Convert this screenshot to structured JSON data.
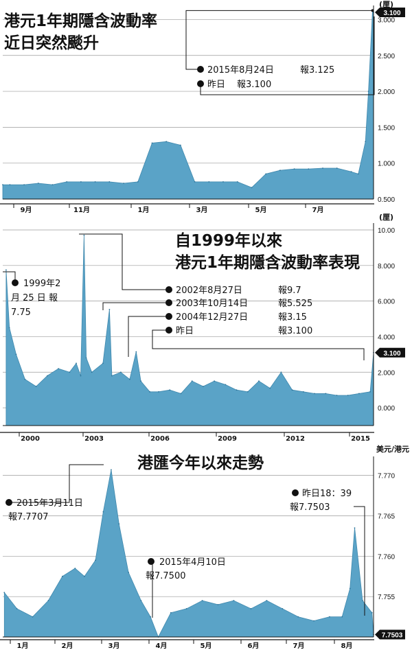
{
  "chart_data": [
    {
      "type": "area",
      "title": [
        "港元1年期隱含波動率",
        "近日突然颷升"
      ],
      "ylabel": "(厘)",
      "ylim": [
        0.5,
        3.1
      ],
      "yticks": [
        "0.500",
        "1.000",
        "1.500",
        "2.000",
        "2.500",
        "3.000"
      ],
      "x_labels": [
        "9月",
        "11月",
        "1月",
        "3月",
        "5月",
        "7月"
      ],
      "x": [
        "2014-08-25",
        "2014-09-01",
        "2014-09-15",
        "2014-09-29",
        "2014-10-13",
        "2014-10-27",
        "2014-11-10",
        "2014-11-24",
        "2014-12-08",
        "2014-12-22",
        "2015-01-05",
        "2015-01-19",
        "2015-02-02",
        "2015-02-16",
        "2015-03-02",
        "2015-03-16",
        "2015-03-30",
        "2015-04-13",
        "2015-04-27",
        "2015-05-11",
        "2015-05-25",
        "2015-06-08",
        "2015-06-22",
        "2015-07-06",
        "2015-07-20",
        "2015-08-03",
        "2015-08-10",
        "2015-08-17",
        "2015-08-20",
        "2015-08-24",
        "2015-08-25"
      ],
      "values": [
        0.7,
        0.7,
        0.7,
        0.72,
        0.7,
        0.74,
        0.74,
        0.74,
        0.74,
        0.72,
        0.74,
        1.28,
        1.3,
        1.25,
        0.74,
        0.74,
        0.74,
        0.74,
        0.66,
        0.85,
        0.9,
        0.92,
        0.92,
        0.93,
        0.93,
        0.88,
        0.85,
        1.3,
        2.0,
        3.125,
        3.1
      ],
      "annotations": [
        {
          "date": "2015年8月24日",
          "label": "報3.125"
        },
        {
          "date": "昨日",
          "label": "報3.100"
        }
      ],
      "last_value_label": "3.100"
    },
    {
      "type": "area",
      "title": [
        "自1999年以來",
        "港元1年期隱含波動率表現"
      ],
      "ylabel": "(厘)",
      "ylim": [
        -1,
        10
      ],
      "yticks": [
        "0.000",
        "2.000",
        "4.000",
        "6.000",
        "8.000",
        "10.00"
      ],
      "x_labels": [
        "2000",
        "2003",
        "2006",
        "2009",
        "2012",
        "2015"
      ],
      "x": [
        1999.15,
        1999.3,
        1999.6,
        2000.0,
        2000.5,
        2001.0,
        2001.5,
        2002.0,
        2002.3,
        2002.5,
        2002.65,
        2002.75,
        2003.0,
        2003.5,
        2003.79,
        2003.9,
        2004.3,
        2004.7,
        2004.99,
        2005.2,
        2005.6,
        2006.0,
        2006.5,
        2007.0,
        2007.5,
        2008.0,
        2008.5,
        2009.0,
        2009.5,
        2010.0,
        2010.5,
        2011.0,
        2011.5,
        2012.0,
        2012.5,
        2013.0,
        2013.5,
        2014.0,
        2014.5,
        2015.0,
        2015.5,
        2015.65
      ],
      "values": [
        7.75,
        4.5,
        3.0,
        1.6,
        1.2,
        1.8,
        2.2,
        2.0,
        2.5,
        1.8,
        9.7,
        2.8,
        2.0,
        2.5,
        5.525,
        1.8,
        2.0,
        1.6,
        3.15,
        1.5,
        0.9,
        0.9,
        1.0,
        0.8,
        1.5,
        1.2,
        1.5,
        1.3,
        1.0,
        0.9,
        1.5,
        1.1,
        2.0,
        1.0,
        0.9,
        0.8,
        0.8,
        0.7,
        0.7,
        0.8,
        0.9,
        3.1
      ],
      "annotations": [
        {
          "date": "1999年2月25日",
          "label": "報7.75"
        },
        {
          "date": "2002年8月27日",
          "label": "報9.7"
        },
        {
          "date": "2003年10月14日",
          "label": "報5.525"
        },
        {
          "date": "2004年12月27日",
          "label": "報3.15"
        },
        {
          "date": "昨日",
          "label": "報3.100"
        }
      ],
      "last_value_label": "3.100"
    },
    {
      "type": "area",
      "title": [
        "港匯今年以來走勢"
      ],
      "ylabel": "美元/港元",
      "ylim": [
        7.75,
        7.7715
      ],
      "yticks": [
        "7.755",
        "7.760",
        "7.765",
        "7.770"
      ],
      "x_labels": [
        "1月",
        "2月",
        "3月",
        "4月",
        "5月",
        "6月",
        "7月",
        "8月"
      ],
      "x": [
        "2015-01-02",
        "2015-01-10",
        "2015-01-20",
        "2015-01-30",
        "2015-02-08",
        "2015-02-16",
        "2015-02-22",
        "2015-03-01",
        "2015-03-06",
        "2015-03-11",
        "2015-03-16",
        "2015-03-22",
        "2015-03-30",
        "2015-04-05",
        "2015-04-10",
        "2015-04-18",
        "2015-04-28",
        "2015-05-08",
        "2015-05-18",
        "2015-05-28",
        "2015-06-08",
        "2015-06-18",
        "2015-06-28",
        "2015-07-08",
        "2015-07-18",
        "2015-07-28",
        "2015-08-05",
        "2015-08-10",
        "2015-08-13",
        "2015-08-18",
        "2015-08-24",
        "2015-08-25"
      ],
      "values": [
        7.7555,
        7.7535,
        7.7525,
        7.7545,
        7.7575,
        7.7585,
        7.7575,
        7.7595,
        7.7655,
        7.7707,
        7.764,
        7.758,
        7.7545,
        7.7525,
        7.75,
        7.753,
        7.7535,
        7.7545,
        7.754,
        7.7545,
        7.7535,
        7.7545,
        7.7535,
        7.7525,
        7.752,
        7.7525,
        7.7525,
        7.756,
        7.7635,
        7.7545,
        7.753,
        7.7503
      ],
      "annotations": [
        {
          "date": "2015年3月11日",
          "label": "報7.7707"
        },
        {
          "date": "2015年4月10日",
          "label": "報7.7500"
        },
        {
          "date": "昨日18：39",
          "label": "報7.7503"
        }
      ],
      "last_value_label": "7.7503"
    }
  ],
  "colors": {
    "area": "#5aa3c7",
    "ink": "#111111",
    "grid": "#9a9a9a"
  }
}
